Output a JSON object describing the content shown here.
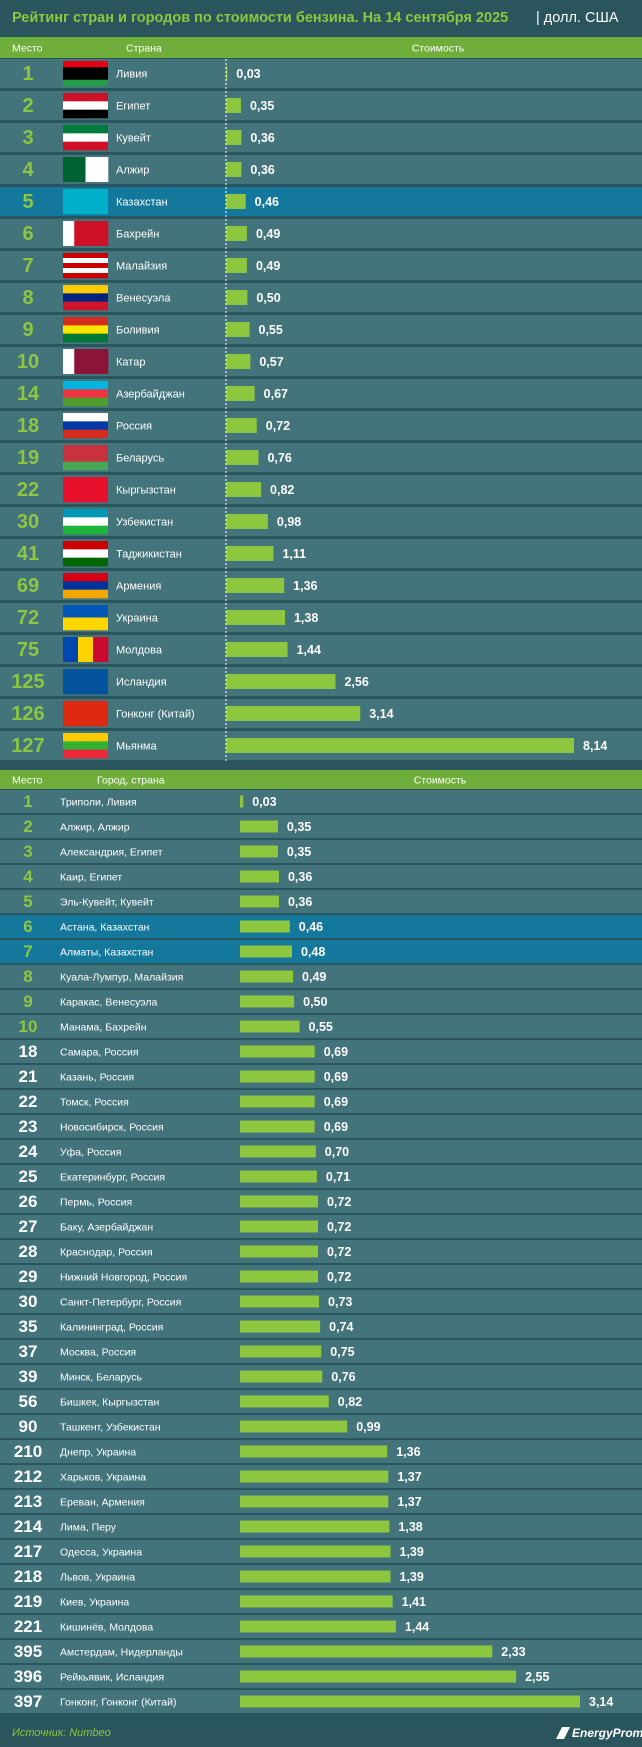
{
  "header": {
    "title": "Рейтинг стран и городов по стоимости бензина. На 14 сентября 2025",
    "unit": "| долл. США"
  },
  "chart_data": [
    {
      "type": "bar",
      "orientation": "horizontal",
      "color": "#8dc63f",
      "columns": [
        "Место",
        "Страна",
        "Стоимость"
      ],
      "ranks": [
        1,
        2,
        3,
        4,
        5,
        6,
        7,
        8,
        9,
        10,
        14,
        18,
        19,
        22,
        30,
        41,
        69,
        72,
        75,
        125,
        126,
        127
      ],
      "categories": [
        "Ливия",
        "Египет",
        "Кувейт",
        "Алжир",
        "Казахстан",
        "Бахрейн",
        "Малайзия",
        "Венесуэла",
        "Боливия",
        "Катар",
        "Азербайджан",
        "Россия",
        "Беларусь",
        "Кыргызстан",
        "Узбекистан",
        "Таджикистан",
        "Армения",
        "Украина",
        "Молдова",
        "Исландия",
        "Гонконг (Китай)",
        "Мьянма"
      ],
      "values": [
        0.03,
        0.35,
        0.36,
        0.36,
        0.46,
        0.49,
        0.49,
        0.5,
        0.55,
        0.57,
        0.67,
        0.72,
        0.76,
        0.82,
        0.98,
        1.11,
        1.36,
        1.38,
        1.44,
        2.56,
        3.14,
        8.14
      ],
      "value_labels": [
        "0,03",
        "0,35",
        "0,36",
        "0,36",
        "0,46",
        "0,49",
        "0,49",
        "0,50",
        "0,55",
        "0,57",
        "0,67",
        "0,72",
        "0,76",
        "0,82",
        "0,98",
        "1,11",
        "1,36",
        "1,38",
        "1,44",
        "2,56",
        "3,14",
        "8,14"
      ]
    },
    {
      "type": "bar",
      "orientation": "horizontal",
      "color": "#8dc63f",
      "columns": [
        "Место",
        "Город, страна",
        "Стоимость"
      ],
      "ranks": [
        1,
        2,
        3,
        4,
        5,
        6,
        7,
        8,
        9,
        10,
        18,
        21,
        22,
        23,
        24,
        25,
        26,
        27,
        28,
        29,
        30,
        35,
        37,
        39,
        56,
        90,
        210,
        212,
        213,
        214,
        217,
        218,
        219,
        221,
        395,
        396,
        397
      ],
      "categories": [
        "Триполи, Ливия",
        "Алжир, Алжир",
        "Александрия, Египет",
        "Каир, Египет",
        "Эль-Кувейт, Кувейт",
        "Астана, Казахстан",
        "Алматы, Казахстан",
        "Куала-Лумпур, Малайзия",
        "Каракас, Венесуэла",
        "Манама, Бахрейн",
        "Самара, Россия",
        "Казань, Россия",
        "Томск, Россия",
        "Новосибирск, Россия",
        "Уфа, Россия",
        "Екатеринбург, Россия",
        "Пермь, Россия",
        "Баку, Азербайджан",
        "Краснодар, Россия",
        "Нижний Новгород, Россия",
        "Санкт-Петербург, Россия",
        "Калининград, Россия",
        "Москва, Россия",
        "Минск, Беларусь",
        "Бишкек, Кыргызстан",
        "Ташкент, Узбекистан",
        "Днепр, Украина",
        "Харьков, Украина",
        "Ереван, Армения",
        "Лима, Перу",
        "Одесса, Украина",
        "Львов, Украина",
        "Киев, Украина",
        "Кишинёв, Молдова",
        "Амстердам, Нидерланды",
        "Рейкьявик, Исландия",
        "Гонконг, Гонконг (Китай)"
      ],
      "values": [
        0.03,
        0.35,
        0.35,
        0.36,
        0.36,
        0.46,
        0.48,
        0.49,
        0.5,
        0.55,
        0.69,
        0.69,
        0.69,
        0.69,
        0.7,
        0.71,
        0.72,
        0.72,
        0.72,
        0.72,
        0.73,
        0.74,
        0.75,
        0.76,
        0.82,
        0.99,
        1.36,
        1.37,
        1.37,
        1.38,
        1.39,
        1.39,
        1.41,
        1.44,
        2.33,
        2.55,
        3.14
      ],
      "value_labels": [
        "0,03",
        "0,35",
        "0,35",
        "0,36",
        "0,36",
        "0,46",
        "0,48",
        "0,49",
        "0,50",
        "0,55",
        "0,69",
        "0,69",
        "0,69",
        "0,69",
        "0,70",
        "0,71",
        "0,72",
        "0,72",
        "0,72",
        "0,72",
        "0,73",
        "0,74",
        "0,75",
        "0,76",
        "0,82",
        "0,99",
        "1,36",
        "1,37",
        "1,37",
        "1,38",
        "1,39",
        "1,39",
        "1,41",
        "1,44",
        "2,33",
        "2,55",
        "3,14"
      ]
    }
  ],
  "footer": {
    "source": "Источник: Numbeo",
    "logo": "EnergyProm"
  }
}
